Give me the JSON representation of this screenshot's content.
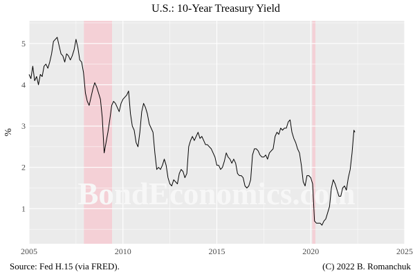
{
  "chart_data": {
    "type": "line",
    "title": "U.S.: 10-Year Treasury Yield",
    "ylabel": "%",
    "xlabel": "",
    "xlim": [
      2005,
      2025
    ],
    "ylim": [
      0.15,
      5.55
    ],
    "x_ticks": [
      2005,
      2010,
      2015,
      2020,
      2025
    ],
    "y_ticks": [
      1,
      2,
      3,
      4,
      5
    ],
    "grid": true,
    "legend": "none",
    "recession_bands": [
      [
        2007.92,
        2009.42
      ],
      [
        2020.08,
        2020.25
      ]
    ],
    "series": [
      {
        "x": [
          2005.0,
          2005.1,
          2005.2,
          2005.3,
          2005.4,
          2005.5,
          2005.6,
          2005.7,
          2005.8,
          2005.9,
          2006.0,
          2006.1,
          2006.2,
          2006.3,
          2006.4,
          2006.5,
          2006.6,
          2006.7,
          2006.8,
          2006.9,
          2007.0,
          2007.1,
          2007.2,
          2007.3,
          2007.4,
          2007.5,
          2007.6,
          2007.7,
          2007.8,
          2007.9,
          2008.0,
          2008.1,
          2008.2,
          2008.3,
          2008.4,
          2008.5,
          2008.6,
          2008.7,
          2008.8,
          2008.9,
          2009.0,
          2009.1,
          2009.2,
          2009.3,
          2009.4,
          2009.5,
          2009.6,
          2009.7,
          2009.8,
          2009.9,
          2010.0,
          2010.1,
          2010.2,
          2010.3,
          2010.4,
          2010.5,
          2010.6,
          2010.7,
          2010.8,
          2010.9,
          2011.0,
          2011.1,
          2011.2,
          2011.3,
          2011.4,
          2011.5,
          2011.6,
          2011.7,
          2011.8,
          2011.9,
          2012.0,
          2012.1,
          2012.2,
          2012.3,
          2012.4,
          2012.5,
          2012.6,
          2012.7,
          2012.8,
          2012.9,
          2013.0,
          2013.1,
          2013.2,
          2013.3,
          2013.4,
          2013.5,
          2013.6,
          2013.7,
          2013.8,
          2013.9,
          2014.0,
          2014.1,
          2014.2,
          2014.3,
          2014.4,
          2014.5,
          2014.6,
          2014.7,
          2014.8,
          2014.9,
          2015.0,
          2015.1,
          2015.2,
          2015.3,
          2015.4,
          2015.5,
          2015.6,
          2015.7,
          2015.8,
          2015.9,
          2016.0,
          2016.1,
          2016.2,
          2016.3,
          2016.4,
          2016.5,
          2016.6,
          2016.7,
          2016.8,
          2016.9,
          2017.0,
          2017.1,
          2017.2,
          2017.3,
          2017.4,
          2017.5,
          2017.6,
          2017.7,
          2017.8,
          2017.9,
          2018.0,
          2018.1,
          2018.2,
          2018.3,
          2018.4,
          2018.5,
          2018.6,
          2018.7,
          2018.8,
          2018.9,
          2019.0,
          2019.1,
          2019.2,
          2019.3,
          2019.4,
          2019.5,
          2019.6,
          2019.7,
          2019.8,
          2019.9,
          2020.0,
          2020.1,
          2020.2,
          2020.3,
          2020.4,
          2020.5,
          2020.6,
          2020.7,
          2020.8,
          2020.9,
          2021.0,
          2021.1,
          2021.2,
          2021.3,
          2021.4,
          2021.5,
          2021.6,
          2021.7,
          2021.8,
          2021.9,
          2022.0,
          2022.1,
          2022.2,
          2022.3,
          2022.35
        ],
        "values": [
          4.25,
          4.15,
          4.45,
          4.1,
          4.2,
          4.0,
          4.25,
          4.2,
          4.45,
          4.5,
          4.4,
          4.55,
          4.75,
          5.05,
          5.1,
          5.15,
          4.95,
          4.75,
          4.7,
          4.55,
          4.75,
          4.7,
          4.6,
          4.7,
          4.85,
          5.1,
          4.9,
          4.6,
          4.55,
          4.3,
          3.8,
          3.6,
          3.5,
          3.7,
          3.9,
          4.05,
          3.95,
          3.8,
          3.65,
          3.2,
          2.35,
          2.6,
          2.85,
          3.15,
          3.5,
          3.6,
          3.55,
          3.45,
          3.35,
          3.55,
          3.65,
          3.7,
          3.75,
          3.85,
          3.3,
          3.0,
          2.9,
          2.6,
          2.5,
          2.85,
          3.35,
          3.55,
          3.45,
          3.3,
          3.05,
          2.95,
          2.85,
          2.35,
          1.95,
          2.0,
          1.95,
          2.05,
          2.2,
          2.05,
          1.75,
          1.6,
          1.55,
          1.7,
          1.65,
          1.6,
          1.85,
          1.95,
          1.9,
          1.75,
          1.85,
          2.5,
          2.65,
          2.75,
          2.65,
          2.75,
          2.85,
          2.7,
          2.75,
          2.65,
          2.55,
          2.55,
          2.5,
          2.45,
          2.35,
          2.25,
          2.05,
          2.05,
          1.95,
          2.0,
          2.15,
          2.35,
          2.25,
          2.2,
          2.1,
          2.2,
          2.1,
          1.85,
          1.8,
          1.8,
          1.75,
          1.55,
          1.5,
          1.55,
          1.7,
          2.3,
          2.45,
          2.45,
          2.4,
          2.3,
          2.25,
          2.25,
          2.3,
          2.2,
          2.35,
          2.4,
          2.45,
          2.75,
          2.85,
          2.8,
          2.95,
          2.9,
          2.95,
          2.95,
          3.1,
          3.15,
          2.85,
          2.7,
          2.6,
          2.45,
          2.35,
          2.05,
          1.65,
          1.55,
          1.8,
          1.8,
          1.75,
          1.6,
          0.7,
          0.65,
          0.65,
          0.65,
          0.6,
          0.7,
          0.75,
          0.9,
          1.05,
          1.5,
          1.7,
          1.6,
          1.45,
          1.3,
          1.3,
          1.5,
          1.55,
          1.45,
          1.75,
          1.95,
          2.35,
          2.9,
          2.85
        ]
      }
    ]
  },
  "footer": {
    "source": "Source: Fed H.15 (via FRED).",
    "copyright": "(C) 2022 B. Romanchuk"
  },
  "watermark": "BondEconomics.com",
  "colors": {
    "panel_bg": "#ebebeb",
    "grid": "#ffffff",
    "line": "#000000",
    "recession": "#f4d0d6",
    "axis_text": "#4d4d4d",
    "watermark": "#f7f7f7"
  }
}
